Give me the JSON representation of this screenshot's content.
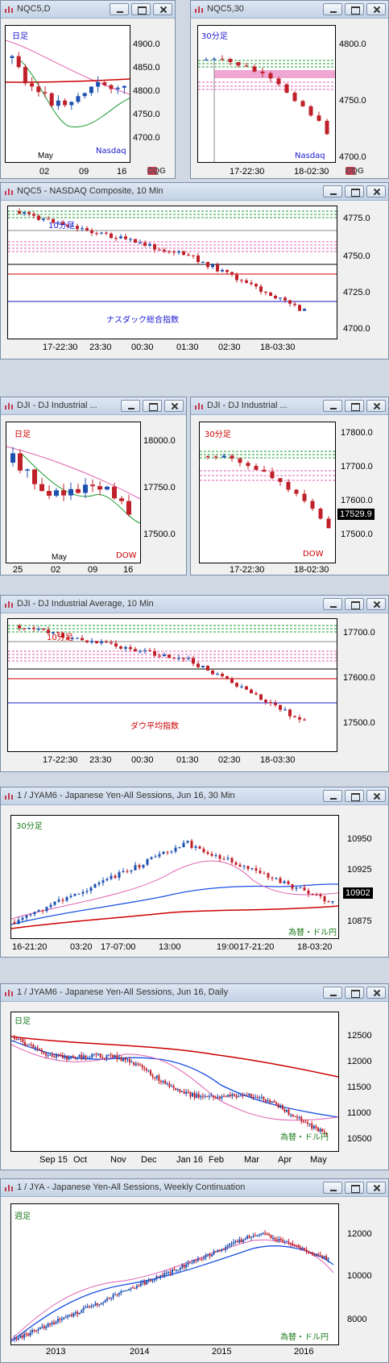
{
  "colors": {
    "candle_up": "#1e50b0",
    "candle_down": "#c0202a",
    "green_line": "#1a9c2e",
    "pink_line": "#e060b0",
    "red_line": "#cc0000",
    "blue_line": "#1a1ad0"
  },
  "windows": [
    {
      "title": "NQC5,D",
      "tag": "日足",
      "tag_color": "#1a1ad0",
      "label": "Nasdaq",
      "label_color": "#1a1ad0",
      "yticks": [
        "4900.0",
        "4850.0",
        "4800.0",
        "4750.0",
        "4700.0"
      ],
      "xticks": [
        "02",
        "09",
        "16"
      ],
      "xsub": "May"
    },
    {
      "title": "NQC5,30",
      "tag": "30分足",
      "tag_color": "#1a1ad0",
      "label": "Nasdaq",
      "label_color": "#1a1ad0",
      "yticks": [
        "4800.0",
        "4750.0",
        "4700.0"
      ],
      "xticks": [
        "17-22:30",
        "18-02:30"
      ]
    },
    {
      "title": "NQC5 - NASDAQ Composite, 10 Min",
      "tag": "10分足",
      "tag_color": "#1a1ad0",
      "label": "ナスダック総合指数",
      "label_color": "#1a1ad0",
      "yticks": [
        "4775.0",
        "4750.0",
        "4725.0",
        "4700.0"
      ],
      "xticks": [
        "17-22:30",
        "23:30",
        "00:30",
        "01:30",
        "02:30",
        "18-03:30"
      ]
    },
    {
      "title": "DJI - DJ Industrial ...",
      "tag": "日足",
      "tag_color": "#cc0000",
      "label": "DOW",
      "label_color": "#cc0000",
      "yticks": [
        "18000.0",
        "17750.0",
        "17500.0"
      ],
      "xticks": [
        "25",
        "02",
        "09",
        "16"
      ],
      "xsub": "May"
    },
    {
      "title": "DJI - DJ Industrial ...",
      "tag": "30分足",
      "tag_color": "#cc0000",
      "label": "DOW",
      "label_color": "#cc0000",
      "yticks": [
        "17800.0",
        "17700.0",
        "17600.0",
        "17500.0"
      ],
      "xticks": [
        "17-22:30",
        "18-02:30"
      ],
      "price": "17529.9"
    },
    {
      "title": "DJI - DJ Industrial Average, 10 Min",
      "tag": "10分足",
      "tag_color": "#cc0000",
      "label": "ダウ平均指数",
      "label_color": "#cc0000",
      "yticks": [
        "17700.0",
        "17600.0",
        "17500.0"
      ],
      "xticks": [
        "17-22:30",
        "23:30",
        "00:30",
        "01:30",
        "02:30",
        "18-03:30"
      ]
    },
    {
      "title": "1 / JYAM6 - Japanese Yen-All Sessions, Jun 16, 30 Min",
      "tag": "30分足",
      "tag_color": "#1a7a1a",
      "label": "為替・ドル円",
      "label_color": "#1a7a1a",
      "yticks": [
        "10950",
        "10925",
        "10875"
      ],
      "xticks": [
        "16-21:20",
        "03:20",
        "17-07:00",
        "13:00",
        "19:00",
        "17-21:20",
        "18-03:20"
      ],
      "price": "10902"
    },
    {
      "title": "1 / JYAM6 - Japanese Yen-All Sessions, Jun 16, Daily",
      "tag": "日足",
      "tag_color": "#1a7a1a",
      "label": "為替・ドル円",
      "label_color": "#1a7a1a",
      "yticks": [
        "12500",
        "12000",
        "11500",
        "11000",
        "10500"
      ],
      "xticks": [
        "Sep 15",
        "Oct",
        "Nov",
        "Dec",
        "Jan 16",
        "Feb",
        "Mar",
        "Apr",
        "May"
      ]
    },
    {
      "title": "1 / JYA - Japanese Yen-All Sessions, Weekly Continuation",
      "tag": "週足",
      "tag_color": "#1a7a1a",
      "label": "為替・ドル円",
      "label_color": "#1a7a1a",
      "yticks": [
        "12000",
        "10000",
        "8000"
      ],
      "xticks": [
        "2013",
        "2014",
        "2015",
        "2016"
      ]
    }
  ],
  "watermark": "CQG"
}
